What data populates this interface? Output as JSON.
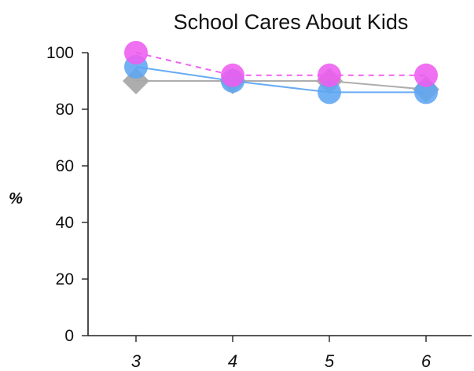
{
  "chart_data": {
    "type": "line",
    "title": "School Cares About Kids",
    "xlabel": "",
    "ylabel": "%",
    "categories": [
      "3",
      "4",
      "5",
      "6"
    ],
    "ylim": [
      0,
      100
    ],
    "yticks": [
      "0",
      "20",
      "40",
      "60",
      "80",
      "100"
    ],
    "grid": false,
    "legend": "none",
    "series": [
      {
        "values": [
          90,
          90,
          90,
          87
        ],
        "color": "#a9a9a9",
        "marker": "diamond",
        "line_style": "solid"
      },
      {
        "values": [
          95,
          90,
          86,
          86
        ],
        "color": "#5fa6f2",
        "marker": "circle",
        "line_style": "solid"
      },
      {
        "values": [
          100,
          92,
          92,
          92
        ],
        "color": "#ee5cf0",
        "marker": "circle",
        "line_style": "dashed"
      }
    ]
  }
}
